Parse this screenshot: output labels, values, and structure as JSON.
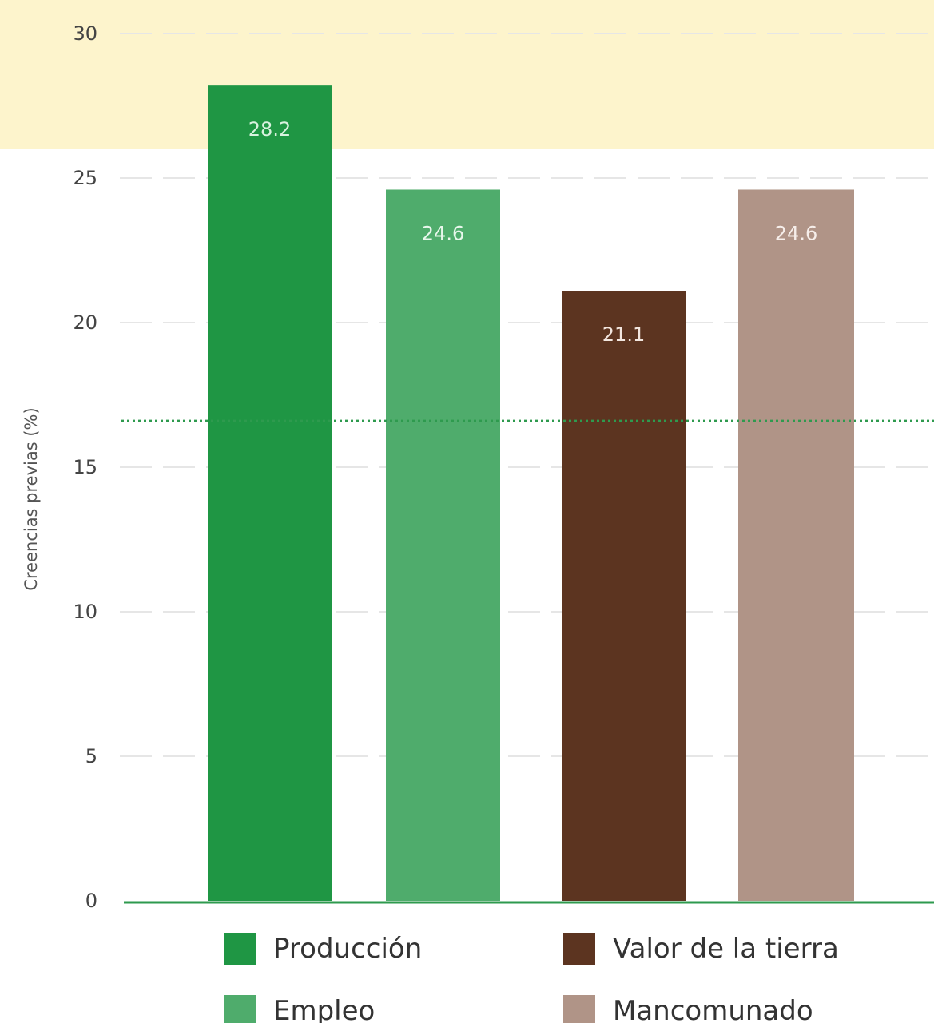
{
  "chart_data": {
    "type": "bar",
    "categories": [
      "Producción",
      "Empleo",
      "Valor de la tierra",
      "Mancomunado"
    ],
    "values": [
      28.2,
      24.6,
      21.1,
      24.6
    ],
    "data_labels": [
      "28.2",
      "24.6",
      "21.1",
      "24.6"
    ],
    "colors": [
      "#1f9644",
      "#4fac6c",
      "#5c3420",
      "#b09487"
    ],
    "label_colors": [
      "#d9f2df",
      "#e8f7ec",
      "#f2e6df",
      "#f6eeea"
    ],
    "ylabel": "Creencias previas (%)",
    "xlabel": "",
    "ylim": [
      0,
      30
    ],
    "yticks": [
      "0",
      "5",
      "10",
      "15",
      "20",
      "25",
      "30"
    ],
    "yticks_values": [
      0,
      5,
      10,
      15,
      20,
      25,
      30
    ],
    "reference_line": 16.6,
    "highlight_band": [
      26,
      30
    ],
    "grid": true,
    "legend_position": "bottom",
    "legend": [
      {
        "label": "Producción",
        "color": "#1f9644"
      },
      {
        "label": "Valor de la tierra",
        "color": "#5c3420"
      },
      {
        "label": "Empleo",
        "color": "#4fac6c"
      },
      {
        "label": "Mancomunado",
        "color": "#b09487"
      }
    ],
    "band_color": "#fdf4cc",
    "reference_color": "#2e9a4e",
    "axis_color": "#2e9a4e"
  }
}
